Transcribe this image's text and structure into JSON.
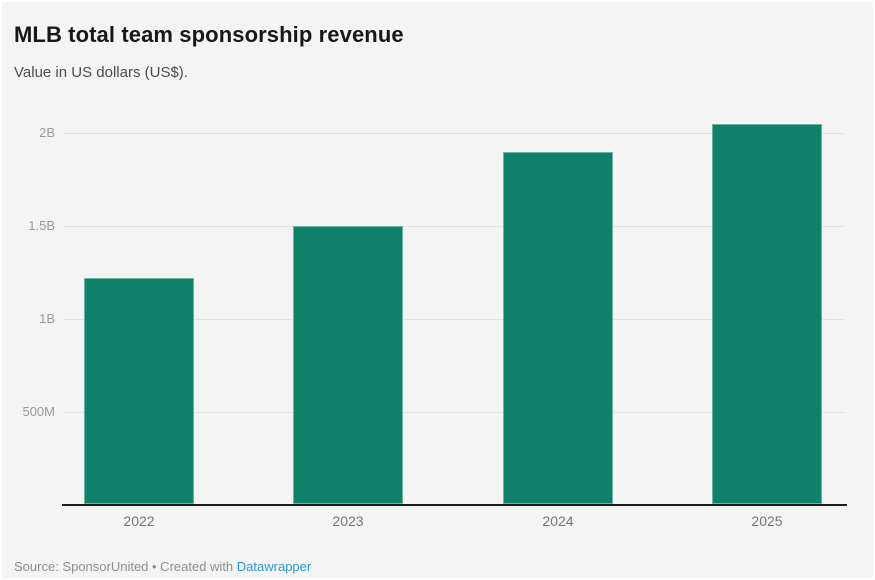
{
  "header": {
    "title": "MLB total team sponsorship revenue",
    "subtitle": "Value in US dollars (US$)."
  },
  "chart_data": {
    "type": "bar",
    "title": "MLB total team sponsorship revenue",
    "subtitle": "Value in US dollars (US$).",
    "categories": [
      "2022",
      "2023",
      "2024",
      "2025"
    ],
    "values": [
      1.22,
      1.5,
      1.9,
      2.05
    ],
    "unit": "billions of US dollars",
    "xlabel": "",
    "ylabel": "",
    "ylim": [
      0,
      2.2
    ],
    "yticks": [
      {
        "label": "500M",
        "value": 0.5
      },
      {
        "label": "1B",
        "value": 1.0
      },
      {
        "label": "1.5B",
        "value": 1.5
      },
      {
        "label": "2B",
        "value": 2.0
      }
    ],
    "grid": true,
    "legend": false,
    "bar_color": "#0e8168"
  },
  "footer": {
    "text": "Source: SponsorUnited • Created with ",
    "link_label": "Datawrapper"
  },
  "colors": {
    "background": "#f4f4f4",
    "bar": "#0e8168",
    "link": "#2b9cd7",
    "axis": "#1b1b1b",
    "gridline": "#e3e3e3"
  }
}
